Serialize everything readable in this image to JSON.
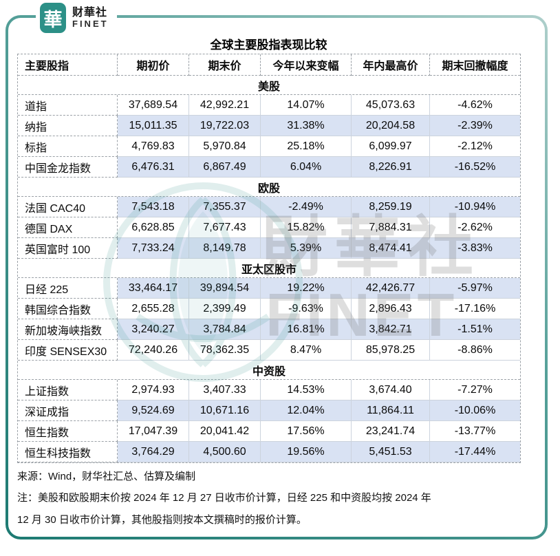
{
  "logo": {
    "mark": "華",
    "name_cn": "财華社",
    "name_en": "FINET"
  },
  "title": "全球主要股指表现比较",
  "watermark": {
    "text_cn": "財華社",
    "text_en": "FINET"
  },
  "colors": {
    "accent_teal": "#2C9087",
    "row_highlight": "#D9E2F3",
    "frame_dark": "#1D7A72",
    "frame_light": "#AECFCB"
  },
  "chart_data": {
    "type": "table",
    "title": "全球主要股指表现比较",
    "columns": [
      "主要股指",
      "期初价",
      "期末价",
      "今年以来变幅",
      "年内最高价",
      "期末回撤幅度"
    ],
    "sections": [
      {
        "group": "美股",
        "rows": [
          {
            "name": "道指",
            "values": [
              "37,689.54",
              "42,992.21",
              "14.07%",
              "45,073.63",
              "-4.62%"
            ],
            "highlight": false
          },
          {
            "name": "纳指",
            "values": [
              "15,011.35",
              "19,722.03",
              "31.38%",
              "20,204.58",
              "-2.39%"
            ],
            "highlight": true
          },
          {
            "name": "标指",
            "values": [
              "4,769.83",
              "5,970.84",
              "25.18%",
              "6,099.97",
              "-2.12%"
            ],
            "highlight": false
          },
          {
            "name": "中国金龙指数",
            "values": [
              "6,476.31",
              "6,867.49",
              "6.04%",
              "8,226.91",
              "-16.52%"
            ],
            "highlight": true
          }
        ]
      },
      {
        "group": "欧股",
        "rows": [
          {
            "name": "法国 CAC40",
            "values": [
              "7,543.18",
              "7,355.37",
              "-2.49%",
              "8,259.19",
              "-10.94%"
            ],
            "highlight": true
          },
          {
            "name": "德国 DAX",
            "values": [
              "6,628.85",
              "7,677.43",
              "15.82%",
              "7,884.31",
              "-2.62%"
            ],
            "highlight": false
          },
          {
            "name": "英国富时 100",
            "values": [
              "7,733.24",
              "8,149.78",
              "5.39%",
              "8,474.41",
              "-3.83%"
            ],
            "highlight": true
          }
        ]
      },
      {
        "group": "亚太区股市",
        "rows": [
          {
            "name": "日经 225",
            "values": [
              "33,464.17",
              "39,894.54",
              "19.22%",
              "42,426.77",
              "-5.97%"
            ],
            "highlight": true
          },
          {
            "name": "韩国综合指数",
            "values": [
              "2,655.28",
              "2,399.49",
              "-9.63%",
              "2,896.43",
              "-17.16%"
            ],
            "highlight": false
          },
          {
            "name": "新加坡海峡指数",
            "values": [
              "3,240.27",
              "3,784.84",
              "16.81%",
              "3,842.71",
              "-1.51%"
            ],
            "highlight": true
          },
          {
            "name": "印度 SENSEX30",
            "values": [
              "72,240.26",
              "78,362.35",
              "8.47%",
              "85,978.25",
              "-8.86%"
            ],
            "highlight": false
          }
        ]
      },
      {
        "group": "中资股",
        "rows": [
          {
            "name": "上证指数",
            "values": [
              "2,974.93",
              "3,407.33",
              "14.53%",
              "3,674.40",
              "-7.27%"
            ],
            "highlight": false
          },
          {
            "name": "深证成指",
            "values": [
              "9,524.69",
              "10,671.16",
              "12.04%",
              "11,864.11",
              "-10.06%"
            ],
            "highlight": true
          },
          {
            "name": "恒生指数",
            "values": [
              "17,047.39",
              "20,041.42",
              "17.56%",
              "23,241.74",
              "-13.77%"
            ],
            "highlight": false
          },
          {
            "name": "恒生科技指数",
            "values": [
              "3,764.29",
              "4,500.60",
              "19.56%",
              "5,451.53",
              "-17.44%"
            ],
            "highlight": true
          }
        ]
      }
    ],
    "source": "来源：Wind，财华社汇总、估算及编制",
    "note_line1": "注：美股和欧股期末价按 2024 年 12 月 27 日收市价计算，日经 225 和中资股均按 2024 年",
    "note_line2": "12 月 30 日收市价计算，其他股指则按本文撰稿时的报价计算。"
  },
  "footer": {
    "source": "来源：Wind，财华社汇总、估算及编制",
    "note_line1": "注：美股和欧股期末价按 2024 年 12 月 27 日收市价计算，日经 225 和中资股均按 2024 年",
    "note_line2": "12 月 30 日收市价计算，其他股指则按本文撰稿时的报价计算。"
  }
}
